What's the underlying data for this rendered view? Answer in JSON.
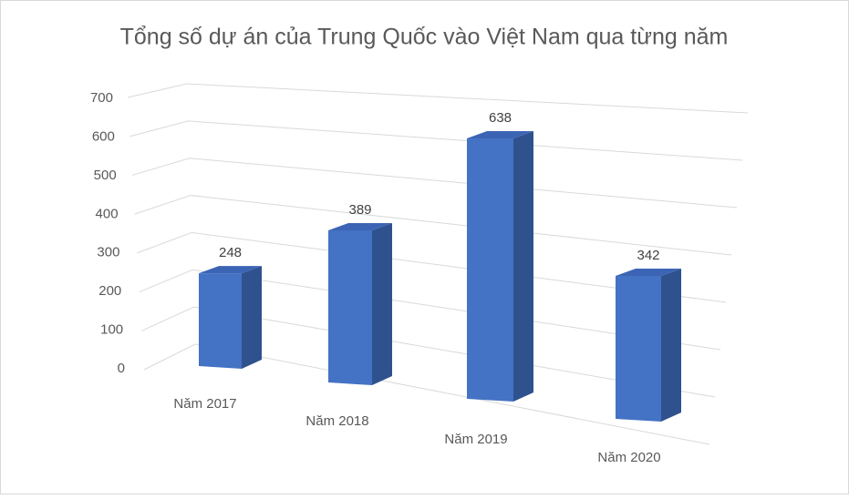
{
  "chart_data": {
    "type": "bar3d",
    "title": "Tổng số dự án của Trung Quốc vào Việt Nam qua từng năm",
    "categories": [
      "Năm 2017",
      "Năm 2018",
      "Năm 2019",
      "Năm 2020"
    ],
    "values": [
      248,
      389,
      638,
      342
    ],
    "color": "#4472c4",
    "ylim": [
      0,
      700
    ],
    "yticks": [
      0,
      100,
      200,
      300,
      400,
      500,
      600,
      700
    ],
    "grid": true
  }
}
